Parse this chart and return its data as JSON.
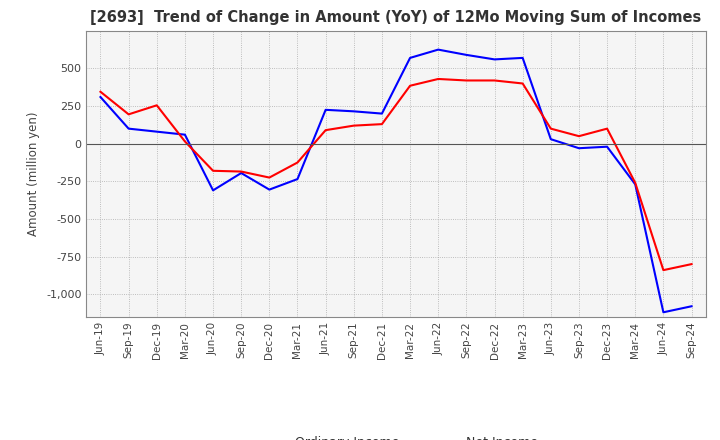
{
  "title": "[2693]  Trend of Change in Amount (YoY) of 12Mo Moving Sum of Incomes",
  "ylabel": "Amount (million yen)",
  "ylim": [
    -1150,
    750
  ],
  "yticks": [
    500,
    250,
    0,
    -250,
    -500,
    -750,
    -1000
  ],
  "background_color": "#ffffff",
  "plot_bg_color": "#f5f5f5",
  "grid_color": "#999999",
  "ordinary_income_color": "#0000ff",
  "net_income_color": "#ff0000",
  "x_labels": [
    "Jun-19",
    "Sep-19",
    "Dec-19",
    "Mar-20",
    "Jun-20",
    "Sep-20",
    "Dec-20",
    "Mar-21",
    "Jun-21",
    "Sep-21",
    "Dec-21",
    "Mar-22",
    "Jun-22",
    "Sep-22",
    "Dec-22",
    "Mar-23",
    "Jun-23",
    "Sep-23",
    "Dec-23",
    "Mar-24",
    "Jun-24",
    "Sep-24"
  ],
  "ordinary_income": [
    310,
    100,
    80,
    60,
    -310,
    -195,
    -305,
    -235,
    225,
    215,
    200,
    570,
    625,
    590,
    560,
    570,
    30,
    -30,
    -20,
    -270,
    -1120,
    -1080
  ],
  "net_income": [
    345,
    195,
    255,
    15,
    -180,
    -185,
    -225,
    -125,
    90,
    120,
    130,
    385,
    430,
    420,
    420,
    400,
    100,
    50,
    100,
    -260,
    -840,
    -800
  ]
}
